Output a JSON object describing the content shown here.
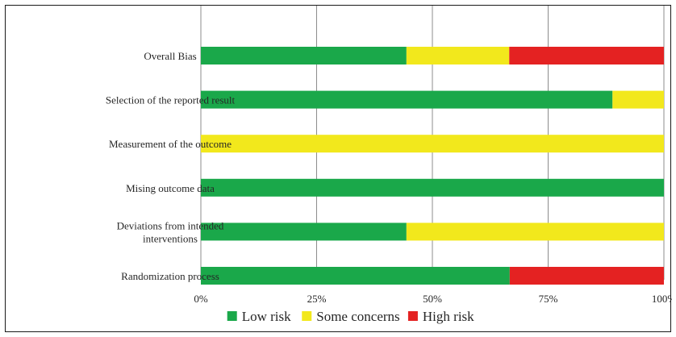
{
  "chart_data": {
    "type": "bar",
    "orientation": "horizontal",
    "stacked": true,
    "categories": [
      "Overall Bias",
      "Selection of the reported result",
      "Measurement of the outcome",
      "Mising outcome data",
      "Deviations from intended interventions",
      "Randomization process"
    ],
    "category_lines": [
      [
        "Overall Bias"
      ],
      [
        "Selection of the reported result"
      ],
      [
        "Measurement of the outcome"
      ],
      [
        "Mising outcome data"
      ],
      [
        "Deviations from intended",
        "interventions"
      ],
      [
        "Randomization process"
      ]
    ],
    "series": [
      {
        "name": "Low risk",
        "color": "#1aa84a",
        "values": [
          44.4,
          88.9,
          0,
          100,
          44.4,
          66.7
        ]
      },
      {
        "name": "Some concerns",
        "color": "#f2e81c",
        "values": [
          22.2,
          11.1,
          100,
          0,
          55.6,
          0
        ]
      },
      {
        "name": "High risk",
        "color": "#e42222",
        "values": [
          33.4,
          0,
          0,
          0,
          0,
          33.3
        ]
      }
    ],
    "xlim": [
      0,
      100
    ],
    "x_ticks": [
      0,
      25,
      50,
      75,
      100
    ],
    "x_tick_labels": [
      "0%",
      "25%",
      "50%",
      "75%",
      "100%"
    ],
    "grid": "vertical",
    "grid_color": "#8c8c8c",
    "legend_position": "bottom"
  }
}
